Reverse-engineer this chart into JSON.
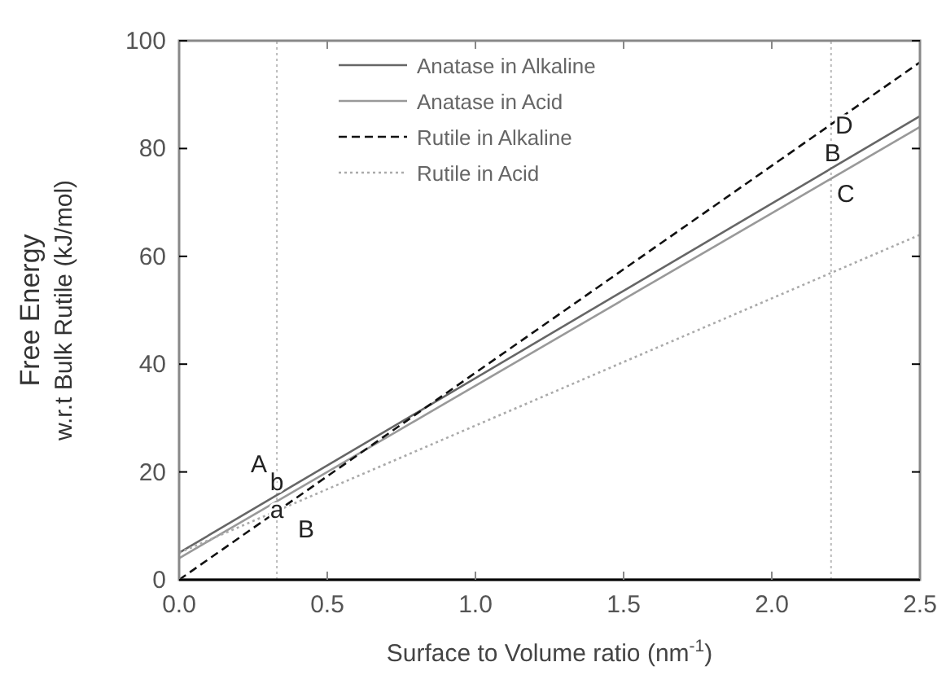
{
  "chart_data": {
    "type": "line",
    "xlabel": "Surface to Volume ratio (nm$^{-1}$)",
    "ylabel": "Free Energy\nw.r.t Bulk Rutile (kJ/mol)",
    "x": [
      0,
      2.5
    ],
    "series": [
      {
        "name": "Anatase in Alkaline",
        "color": "#666666",
        "line_style": "solid",
        "values": [
          5,
          86
        ]
      },
      {
        "name": "Anatase in Acid",
        "color": "#999999",
        "line_style": "solid",
        "values": [
          4,
          84
        ]
      },
      {
        "name": "Rutile in Alkaline",
        "color": "#111111",
        "line_style": "dashed",
        "values": [
          0,
          96
        ]
      },
      {
        "name": "Rutile in Acid",
        "color": "#aaaaaa",
        "line_style": "dotted",
        "values": [
          5,
          64
        ]
      }
    ],
    "xlim": [
      0,
      2.5
    ],
    "ylim": [
      0,
      100
    ],
    "xticks": [
      {
        "value": 0,
        "label": "0.0"
      },
      {
        "value": 0.5,
        "label": "0.5"
      },
      {
        "value": 1,
        "label": "1.0"
      },
      {
        "value": 1.5,
        "label": "1.5"
      },
      {
        "value": 2,
        "label": "2.0"
      },
      {
        "value": 2.5,
        "label": "2.5"
      }
    ],
    "yticks": [
      0,
      20,
      40,
      60,
      80,
      100
    ],
    "ref_lines": [
      {
        "axis": "x",
        "value": 0.33,
        "color": "#bbbbbb",
        "line_style": "dotted"
      },
      {
        "axis": "x",
        "value": 2.2,
        "color": "#bbbbbb",
        "line_style": "dotted"
      }
    ],
    "annotations": [
      "A",
      "b",
      "a",
      "B",
      "D",
      "B",
      "C"
    ],
    "legend": "top",
    "marker": "none"
  }
}
